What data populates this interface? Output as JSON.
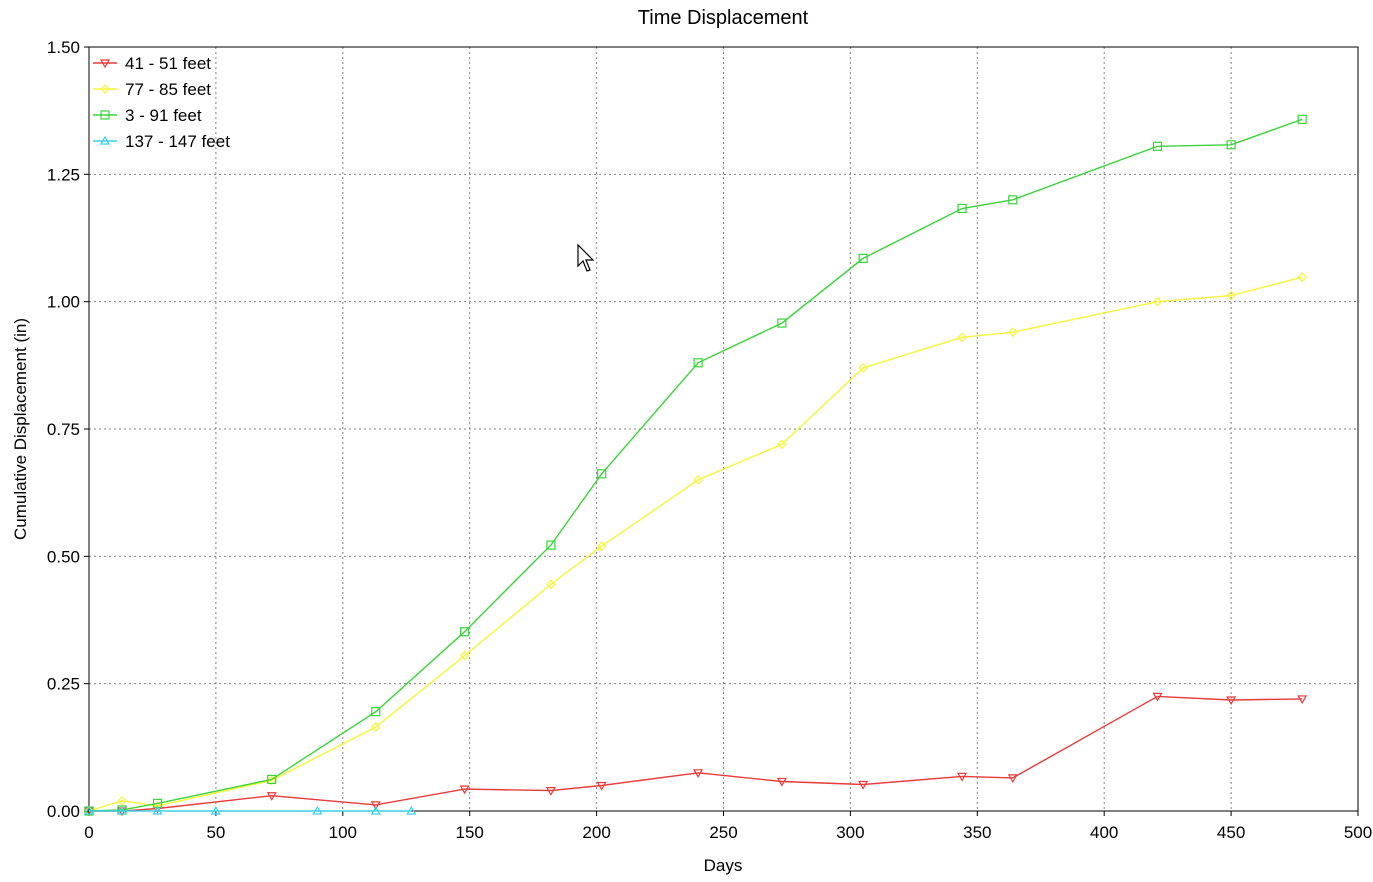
{
  "chart_data": {
    "type": "line",
    "title": "Time Displacement",
    "xlabel": "Days",
    "ylabel": "Cumulative Displacement (in)",
    "xlim": [
      0,
      500
    ],
    "ylim": [
      0,
      1.5
    ],
    "xticks": [
      0,
      50,
      100,
      150,
      200,
      250,
      300,
      350,
      400,
      450,
      500
    ],
    "xtick_labels": [
      "0",
      "50",
      "100",
      "150",
      "200",
      "250",
      "300",
      "350",
      "400",
      "450",
      "500"
    ],
    "yticks": [
      0,
      0.25,
      0.5,
      0.75,
      1.0,
      1.25,
      1.5
    ],
    "ytick_labels": [
      "0.00",
      "0.25",
      "0.50",
      "0.75",
      "1.00",
      "1.25",
      "1.50"
    ],
    "grid": true,
    "legend_position": "top-left",
    "series": [
      {
        "name": "41 - 51 feet",
        "color": "#e83a3a",
        "marker": "triangle-down",
        "x": [
          0,
          13,
          27,
          72,
          113,
          148,
          182,
          202,
          240,
          273,
          305,
          344,
          364,
          421,
          450,
          478
        ],
        "y": [
          0.0,
          0.0,
          0.005,
          0.03,
          0.012,
          0.043,
          0.04,
          0.05,
          0.075,
          0.058,
          0.052,
          0.068,
          0.065,
          0.225,
          0.218,
          0.22
        ]
      },
      {
        "name": "77 - 85 feet",
        "color": "#f5f53a",
        "marker": "diamond",
        "x": [
          0,
          13,
          27,
          72,
          113,
          148,
          182,
          202,
          240,
          273,
          305,
          344,
          364,
          421,
          450,
          478
        ],
        "y": [
          0.0,
          0.02,
          0.01,
          0.06,
          0.165,
          0.305,
          0.445,
          0.52,
          0.65,
          0.72,
          0.87,
          0.93,
          0.94,
          1.0,
          1.012,
          1.048
        ]
      },
      {
        "name": "3 - 91 feet",
        "color": "#3ad43a",
        "marker": "square",
        "x": [
          0,
          13,
          27,
          72,
          113,
          148,
          182,
          202,
          240,
          273,
          305,
          344,
          364,
          421,
          450,
          478
        ],
        "y": [
          0.0,
          0.002,
          0.015,
          0.062,
          0.195,
          0.352,
          0.522,
          0.662,
          0.88,
          0.958,
          1.085,
          1.183,
          1.2,
          1.305,
          1.308,
          1.358
        ]
      },
      {
        "name": "137 - 147 feet",
        "color": "#3ad0e8",
        "marker": "star",
        "x": [
          0,
          13,
          27,
          50,
          90,
          113,
          127
        ],
        "y": [
          0.0,
          0.0,
          0.0,
          0.0,
          0.0,
          0.0,
          0.0
        ]
      }
    ]
  }
}
